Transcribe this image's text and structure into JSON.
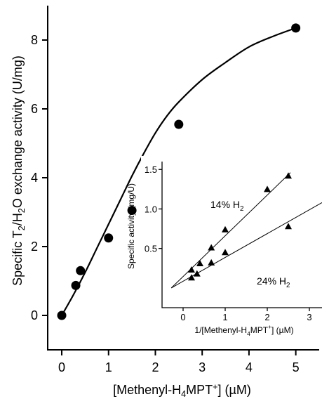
{
  "chart_data": [
    {
      "type": "scatter",
      "title": "",
      "xlabel": {
        "parts": [
          {
            "t": "[Methenyl-H"
          },
          {
            "t": "4",
            "s": "sub"
          },
          {
            "t": "MPT"
          },
          {
            "t": "+",
            "s": "sup"
          },
          {
            "t": "] (µM)"
          }
        ]
      },
      "ylabel": {
        "parts": [
          {
            "t": "Specific T"
          },
          {
            "t": "2",
            "s": "sub"
          },
          {
            "t": "/H"
          },
          {
            "t": "2",
            "s": "sub"
          },
          {
            "t": "O exchange activity (U/mg)"
          }
        ]
      },
      "xlim": [
        -0.3,
        5.5
      ],
      "ylim": [
        -1,
        9
      ],
      "xticks": [
        0,
        1,
        2,
        3,
        4,
        5
      ],
      "yticks": [
        0,
        2,
        4,
        6,
        8
      ],
      "series": [
        {
          "marker": "circle",
          "x": [
            0,
            0.3,
            0.4,
            1.0,
            1.5,
            2.5,
            5.0
          ],
          "y": [
            0,
            0.87,
            1.3,
            2.25,
            3.05,
            5.55,
            8.35
          ]
        }
      ],
      "fit_curve": {
        "x": [
          0,
          0.25,
          0.5,
          0.75,
          1.0,
          1.25,
          1.5,
          1.75,
          2.0,
          2.25,
          2.5,
          3.0,
          3.5,
          4.0,
          4.5,
          5.0
        ],
        "y": [
          0,
          0.6,
          1.25,
          1.95,
          2.65,
          3.35,
          4.05,
          4.7,
          5.3,
          5.8,
          6.2,
          6.85,
          7.35,
          7.8,
          8.1,
          8.35
        ]
      }
    },
    {
      "type": "scatter",
      "title": "",
      "xlabel": {
        "parts": [
          {
            "t": "1/[Methenyl-H"
          },
          {
            "t": "4",
            "s": "sub"
          },
          {
            "t": "MPT"
          },
          {
            "t": "+",
            "s": "sup"
          },
          {
            "t": "] (µM)"
          }
        ]
      },
      "ylabel": {
        "parts": [
          {
            "t": "Specific activity (mg/U)"
          }
        ]
      },
      "xlim": [
        -0.5,
        3.3
      ],
      "ylim": [
        -0.25,
        1.6
      ],
      "xticks": [
        0,
        1,
        2,
        3
      ],
      "yticks": [
        0.5,
        1.0,
        1.5
      ],
      "ytick_labels": [
        "0.5",
        "1.0",
        "1.5"
      ],
      "series": [
        {
          "label_parts": [
            {
              "t": "14% H"
            },
            {
              "t": "2",
              "s": "sub"
            }
          ],
          "marker": "triangle",
          "x": [
            0.2,
            0.4,
            0.67,
            1.0,
            2.0,
            2.5
          ],
          "y": [
            0.23,
            0.31,
            0.51,
            0.74,
            1.25,
            1.42
          ],
          "fit": {
            "x": [
              -0.28,
              2.55
            ],
            "y": [
              0.0,
              1.46
            ]
          }
        },
        {
          "label_parts": [
            {
              "t": "24% H"
            },
            {
              "t": "2",
              "s": "sub"
            }
          ],
          "marker": "triangle",
          "x": [
            0.2,
            0.33,
            0.67,
            1.0,
            2.5
          ],
          "y": [
            0.13,
            0.18,
            0.32,
            0.45,
            0.78
          ],
          "fit": {
            "x": [
              -0.28,
              3.3
            ],
            "y": [
              0.0,
              1.08
            ]
          }
        }
      ]
    }
  ]
}
